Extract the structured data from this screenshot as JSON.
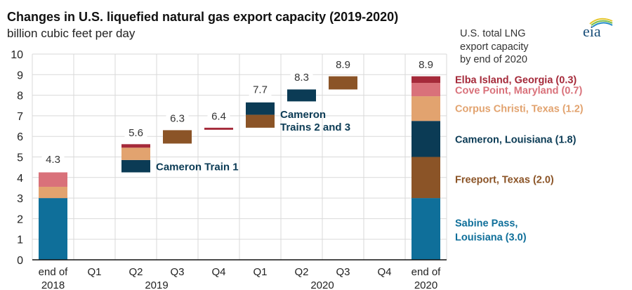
{
  "chart_data": {
    "type": "bar",
    "title": "Changes in U.S. liquefied natural gas export capacity (2019-2020)",
    "subtitle": "billion cubic feet per day",
    "ylabel": "billion cubic feet per day",
    "ylim": [
      0,
      10
    ],
    "yticks": [
      "0",
      "1",
      "2",
      "3",
      "4",
      "5",
      "6",
      "7",
      "8",
      "9",
      "10"
    ],
    "grid": true,
    "categories": [
      {
        "label": "end of",
        "sub": "2018"
      },
      {
        "label": "Q1",
        "sub": ""
      },
      {
        "label": "Q2",
        "sub": "2019"
      },
      {
        "label": "Q3",
        "sub": ""
      },
      {
        "label": "Q4",
        "sub": ""
      },
      {
        "label": "Q1",
        "sub": ""
      },
      {
        "label": "Q2",
        "sub": "2020"
      },
      {
        "label": "Q3",
        "sub": ""
      },
      {
        "label": "Q4",
        "sub": ""
      },
      {
        "label": "end of",
        "sub": "2020"
      }
    ],
    "year_labels": [
      {
        "text": "2018",
        "category_index": 0
      },
      {
        "text": "2019",
        "category_index": 2.5
      },
      {
        "text": "2020",
        "category_index": 6.5
      },
      {
        "text": "2020",
        "category_index": 9
      }
    ],
    "series_colors": {
      "Sabine Pass": "#0f6f9a",
      "Freeport": "#8b5427",
      "Cameron": "#0b3b55",
      "Corpus Christi": "#e2a36f",
      "Cove Point": "#d9717a",
      "Elba Island": "#a52a3a"
    },
    "segments": [
      {
        "category": 0,
        "series": "Sabine Pass",
        "from": 0,
        "to": 3.0
      },
      {
        "category": 0,
        "series": "Corpus Christi",
        "from": 3.0,
        "to": 3.55
      },
      {
        "category": 0,
        "series": "Cove Point",
        "from": 3.55,
        "to": 4.25
      },
      {
        "category": 2,
        "series": "Cameron",
        "from": 4.25,
        "to": 4.85
      },
      {
        "category": 2,
        "series": "Corpus Christi",
        "from": 4.85,
        "to": 5.45
      },
      {
        "category": 2,
        "series": "Elba Island",
        "from": 5.45,
        "to": 5.62
      },
      {
        "category": 3,
        "series": "Freeport",
        "from": 5.65,
        "to": 6.3
      },
      {
        "category": 4,
        "series": "Elba Island",
        "from": 6.32,
        "to": 6.42
      },
      {
        "category": 5,
        "series": "Freeport",
        "from": 6.42,
        "to": 7.05
      },
      {
        "category": 5,
        "series": "Cameron",
        "from": 7.05,
        "to": 7.65
      },
      {
        "category": 6,
        "series": "Cameron",
        "from": 7.7,
        "to": 8.28
      },
      {
        "category": 7,
        "series": "Freeport",
        "from": 8.28,
        "to": 8.92
      },
      {
        "category": 9,
        "series": "Sabine Pass",
        "from": 0,
        "to": 3.0
      },
      {
        "category": 9,
        "series": "Freeport",
        "from": 3.0,
        "to": 5.0
      },
      {
        "category": 9,
        "series": "Cameron",
        "from": 5.0,
        "to": 6.75
      },
      {
        "category": 9,
        "series": "Corpus Christi",
        "from": 6.75,
        "to": 7.95
      },
      {
        "category": 9,
        "series": "Cove Point",
        "from": 7.95,
        "to": 8.6
      },
      {
        "category": 9,
        "series": "Elba Island",
        "from": 8.6,
        "to": 8.92
      }
    ],
    "total_labels": [
      {
        "category": 0,
        "value": 4.3,
        "text": "4.3"
      },
      {
        "category": 2,
        "value": 5.6,
        "text": "5.6"
      },
      {
        "category": 3,
        "value": 6.3,
        "text": "6.3"
      },
      {
        "category": 4,
        "value": 6.4,
        "text": "6.4"
      },
      {
        "category": 5,
        "value": 7.7,
        "text": "7.7"
      },
      {
        "category": 6,
        "value": 8.3,
        "text": "8.3"
      },
      {
        "category": 7,
        "value": 8.9,
        "text": "8.9"
      },
      {
        "category": 9,
        "value": 8.9,
        "text": "8.9"
      }
    ],
    "annotations": [
      {
        "lines": [
          "Cameron Train 1"
        ],
        "category": 2,
        "value": 4.55,
        "color": "#0b3b55"
      },
      {
        "lines": [
          "Cameron",
          "Trains 2 and 3"
        ],
        "category": 5,
        "value": 7.1,
        "color": "#0b3b55"
      }
    ],
    "legend_title": [
      "U.S. total LNG",
      "export capacity",
      "by end of 2020"
    ],
    "legend": [
      {
        "lines": [
          "Elba Island, Georgia (0.3)"
        ],
        "color": "#a52a3a",
        "value": 8.75
      },
      {
        "lines": [
          "Cove Point, Maryland (0.7)"
        ],
        "color": "#d9717a",
        "value": 8.25
      },
      {
        "lines": [
          "Corpus Christi, Texas (1.2)"
        ],
        "color": "#e2a36f",
        "value": 7.35
      },
      {
        "lines": [
          "Cameron, Louisiana (1.8)"
        ],
        "color": "#0b3b55",
        "value": 5.85
      },
      {
        "lines": [
          "Freeport, Texas (2.0)"
        ],
        "color": "#8b5427",
        "value": 3.9
      },
      {
        "lines": [
          "Sabine Pass,",
          "Louisiana (3.0)"
        ],
        "color": "#0f6f9a",
        "value": 1.45
      }
    ],
    "legend_placement": "right"
  },
  "branding": {
    "logo_text": "eia"
  }
}
